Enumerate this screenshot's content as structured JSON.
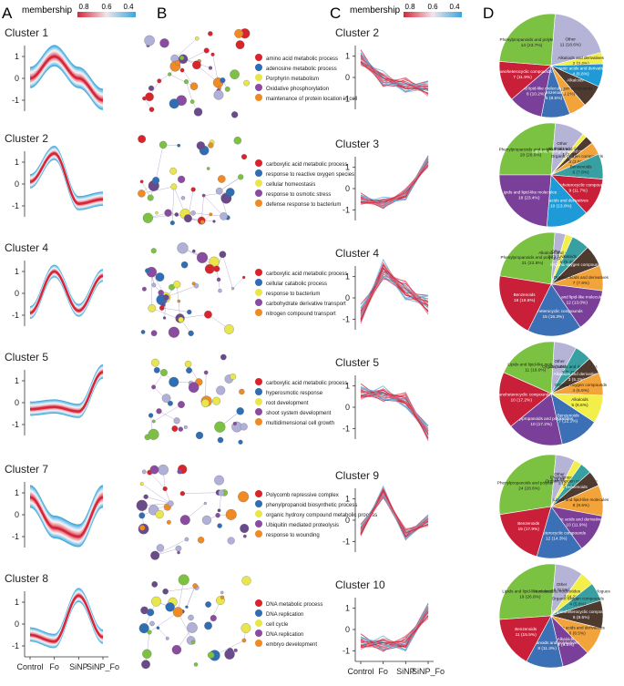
{
  "panel_letters": [
    "A",
    "B",
    "C",
    "D"
  ],
  "membership": {
    "label": "membership",
    "ticks": [
      "0.8",
      "0.6",
      "0.4"
    ]
  },
  "x_categories": [
    "Control",
    "Fo",
    "SiNP",
    "SiNP_Fo"
  ],
  "y_ticks": [
    "1",
    "0",
    "-1"
  ],
  "colors": {
    "red": "#d6263a",
    "blue": "#3aa6dc",
    "light": "#e8f1f8",
    "legend": [
      "#d9242b",
      "#2f6db5",
      "#e8e64a",
      "#8a4ba0",
      "#f08a24"
    ],
    "pie": {
      "Phenylpropanoids": "#7cc242",
      "Organoheterocyclic": "#c91f38",
      "Lipids": "#7a3f98",
      "Benzenoids": "#3b6fb6",
      "Organic acids": "#1e9bd7",
      "Organic oxygen": "#f2a43a",
      "Alkaloids": "#f2ee4a",
      "Other": "#b5b3d6",
      "Lignans": "#4e3a2f",
      "Alkaloids2": "#38a0a0",
      "Nucleosides": "#8b6b4a"
    }
  },
  "chart_data": [
    {
      "type": "line",
      "panel": "A",
      "title": "Cluster 1",
      "categories": [
        "Control",
        "Fo",
        "SiNP",
        "SiNP_Fo"
      ],
      "values": [
        0.0,
        1.0,
        0.0,
        -1.0
      ],
      "spread": 0.75,
      "ylim": [
        -1.5,
        1.5
      ]
    },
    {
      "type": "line",
      "panel": "A",
      "title": "Cluster 2",
      "categories": [
        "Control",
        "Fo",
        "SiNP",
        "SiNP_Fo"
      ],
      "values": [
        0.1,
        1.4,
        -0.9,
        -0.7
      ],
      "spread": 0.5,
      "ylim": [
        -1.5,
        1.5
      ]
    },
    {
      "type": "line",
      "panel": "A",
      "title": "Cluster 4",
      "categories": [
        "Control",
        "Fo",
        "SiNP",
        "SiNP_Fo"
      ],
      "values": [
        -0.9,
        1.0,
        -0.8,
        0.8
      ],
      "spread": 0.45,
      "ylim": [
        -1.5,
        1.5
      ]
    },
    {
      "type": "line",
      "panel": "A",
      "title": "Cluster 5",
      "categories": [
        "Control",
        "Fo",
        "SiNP",
        "SiNP_Fo"
      ],
      "values": [
        -0.3,
        -0.2,
        -0.4,
        1.4
      ],
      "spread": 0.5,
      "ylim": [
        -1.5,
        1.5
      ]
    },
    {
      "type": "line",
      "panel": "A",
      "title": "Cluster 7",
      "categories": [
        "Control",
        "Fo",
        "SiNP",
        "SiNP_Fo"
      ],
      "values": [
        0.8,
        -0.6,
        -1.0,
        0.8
      ],
      "spread": 0.8,
      "ylim": [
        -1.5,
        1.5
      ]
    },
    {
      "type": "line",
      "panel": "A",
      "title": "Cluster 8",
      "categories": [
        "Control",
        "Fo",
        "SiNP",
        "SiNP_Fo"
      ],
      "values": [
        -0.5,
        -0.8,
        1.3,
        -0.6
      ],
      "spread": 0.5,
      "ylim": [
        -1.5,
        1.5
      ]
    },
    {
      "type": "line",
      "panel": "C",
      "title": "Cluster 2",
      "categories": [
        "Control",
        "Fo",
        "SiNP",
        "SiNP_Fo"
      ],
      "values": [
        0.9,
        -0.1,
        -0.4,
        -0.5
      ],
      "spread": 0.4,
      "ylim": [
        -1.5,
        1.5
      ]
    },
    {
      "type": "line",
      "panel": "C",
      "title": "Cluster 3",
      "categories": [
        "Control",
        "Fo",
        "SiNP",
        "SiNP_Fo"
      ],
      "values": [
        -0.5,
        -0.7,
        -0.3,
        1.3
      ],
      "spread": 0.3,
      "ylim": [
        -1.5,
        1.5
      ]
    },
    {
      "type": "line",
      "panel": "C",
      "title": "Cluster 4",
      "categories": [
        "Control",
        "Fo",
        "SiNP",
        "SiNP_Fo"
      ],
      "values": [
        -0.8,
        1.3,
        0.3,
        -0.3
      ],
      "spread": 0.5,
      "ylim": [
        -1.5,
        1.5
      ]
    },
    {
      "type": "line",
      "panel": "C",
      "title": "Cluster 5",
      "categories": [
        "Control",
        "Fo",
        "SiNP",
        "SiNP_Fo"
      ],
      "values": [
        0.7,
        0.6,
        0.3,
        -1.2
      ],
      "spread": 0.4,
      "ylim": [
        -1.5,
        1.5
      ]
    },
    {
      "type": "line",
      "panel": "C",
      "title": "Cluster 9",
      "categories": [
        "Control",
        "Fo",
        "SiNP",
        "SiNP_Fo"
      ],
      "values": [
        -0.5,
        1.3,
        -0.7,
        0.0
      ],
      "spread": 0.3,
      "ylim": [
        -1.5,
        1.5
      ]
    },
    {
      "type": "line",
      "panel": "C",
      "title": "Cluster 10",
      "categories": [
        "Control",
        "Fo",
        "SiNP",
        "SiNP_Fo"
      ],
      "values": [
        -0.6,
        -0.7,
        -0.7,
        0.9
      ],
      "spread": 0.4,
      "ylim": [
        -1.5,
        1.5
      ]
    },
    {
      "type": "pie",
      "panel": "D",
      "slices": [
        {
          "label": "Phenylpropanoids and polyketides",
          "value": 14,
          "text": "14 (23.7%)",
          "color": "Phenylpropanoids"
        },
        {
          "label": "Other",
          "value": 11,
          "text": "11 (18.6%)",
          "color": "Other"
        },
        {
          "label": "Alkaloids and derivatives",
          "value": 2,
          "text": "2 (3.4%)",
          "color": "Alkaloids"
        },
        {
          "label": "Organic acids and derivatives",
          "value": 4,
          "text": "4 (6.8%)",
          "color": "Organic acids"
        },
        {
          "label": "Alkaloids",
          "value": 4,
          "text": "",
          "color": "Lignans"
        },
        {
          "label": "Organic oxygen compounds",
          "value": 3,
          "text": "3 (5.1%)",
          "color": "Organic oxygen"
        },
        {
          "label": "Benzenoids",
          "value": 5,
          "text": "5 (8.5%)",
          "color": "Benzenoids"
        },
        {
          "label": "Lipids and lipid-like molecules",
          "value": 6,
          "text": "6 (10.2%)",
          "color": "Lipids"
        },
        {
          "label": "Organoheterocyclic compounds",
          "value": 7,
          "text": "7 (11.9%)",
          "color": "Organoheterocyclic"
        }
      ]
    },
    {
      "type": "pie",
      "panel": "D",
      "slices": [
        {
          "label": "Phenylpropanoids and polyketides",
          "value": 20,
          "text": "20 (26.0%)",
          "color": "Phenylpropanoids"
        },
        {
          "label": "Other",
          "value": 7,
          "text": "7 (9.1%)",
          "color": "Other"
        },
        {
          "label": "Alkaloids and derivatives",
          "value": 1,
          "text": "1 (1.3%)",
          "color": "Alkaloids"
        },
        {
          "label": "Lignans, neolignans and related compounds",
          "value": 2,
          "text": "2 (2.6%)",
          "color": "Lignans"
        },
        {
          "label": "Organic oxygen compounds",
          "value": 3,
          "text": "3 (3.9%)",
          "color": "Organic oxygen"
        },
        {
          "label": "Benzenoids",
          "value": 6,
          "text": "6 (7.8%)",
          "color": "Alkaloids2"
        },
        {
          "label": "Organoheterocyclic compounds",
          "value": 9,
          "text": "9 (11.7%)",
          "color": "Organoheterocyclic"
        },
        {
          "label": "Organic acids and derivatives",
          "value": 10,
          "text": "10 (13.0%)",
          "color": "Organic acids"
        },
        {
          "label": "Lipids and lipid-like molecules",
          "value": 18,
          "text": "18 (23.4%)",
          "color": "Lipids"
        }
      ]
    },
    {
      "type": "pie",
      "panel": "D",
      "slices": [
        {
          "label": "Phenylpropanoids and polyketides",
          "value": 21,
          "text": "21 (22.8%)",
          "color": "Phenylpropanoids"
        },
        {
          "label": "Other",
          "value": 3,
          "text": "3 (3.3%)",
          "color": "Other"
        },
        {
          "label": "Alkaloids and derivatives",
          "value": 2,
          "text": "2 (2.2%)",
          "color": "Alkaloids"
        },
        {
          "label": "Alkaloids",
          "value": 5,
          "text": "5 (5.4%)",
          "color": "Alkaloids2"
        },
        {
          "label": "Organic oxygen compounds",
          "value": 6,
          "text": "",
          "color": "Lignans"
        },
        {
          "label": "Organic acids and derivatives",
          "value": 7,
          "text": "7 (7.6%)",
          "color": "Organic oxygen"
        },
        {
          "label": "Lipids and lipid-like molecules",
          "value": 12,
          "text": "12 (13.0%)",
          "color": "Lipids"
        },
        {
          "label": "Organoheterocyclic compounds",
          "value": 15,
          "text": "15 (16.3%)",
          "color": "Benzenoids"
        },
        {
          "label": "Benzenoids",
          "value": 18,
          "text": "18 (19.6%)",
          "color": "Organoheterocyclic"
        }
      ]
    },
    {
      "type": "pie",
      "panel": "D",
      "slices": [
        {
          "label": "Lipids and lipid-like molecules",
          "value": 11,
          "text": "11 (19.0%)",
          "color": "Phenylpropanoids"
        },
        {
          "label": "Other",
          "value": 4,
          "text": "4 (6.9%)",
          "color": "Other"
        },
        {
          "label": "Organic acids and derivatives",
          "value": 3,
          "text": "3 (5.2%)",
          "color": "Alkaloids2"
        },
        {
          "label": "Alkaloids and derivatives",
          "value": 3,
          "text": "3 (5.2%)",
          "color": "Lignans"
        },
        {
          "label": "Organic oxygen compounds",
          "value": 4,
          "text": "4 (6.9%)",
          "color": "Organic oxygen"
        },
        {
          "label": "Alkaloids",
          "value": 5,
          "text": "5 (8.6%)",
          "color": "Alkaloids"
        },
        {
          "label": "Benzenoids",
          "value": 7,
          "text": "7 (12.1%)",
          "color": "Benzenoids"
        },
        {
          "label": "Phenylpropanoids and polyketides",
          "value": 10,
          "text": "10 (17.2%)",
          "color": "Lipids"
        },
        {
          "label": "Organoheterocyclic compounds",
          "value": 10,
          "text": "10 (17.2%)",
          "color": "Organoheterocyclic"
        }
      ]
    },
    {
      "type": "pie",
      "panel": "D",
      "slices": [
        {
          "label": "Phenylpropanoids and polyketides",
          "value": 24,
          "text": "24 (28.6%)",
          "color": "Phenylpropanoids"
        },
        {
          "label": "Other",
          "value": 5,
          "text": "5 (6.0%)",
          "color": "Other"
        },
        {
          "label": "Phenylpropanoids",
          "value": 2,
          "text": "2 (2.4%)",
          "color": "Alkaloids"
        },
        {
          "label": "Organic oxygen compounds",
          "value": 3,
          "text": "3 (3.6%)",
          "color": "Alkaloids2"
        },
        {
          "label": "Benzenoids",
          "value": 4,
          "text": "",
          "color": "Lignans"
        },
        {
          "label": "Lipids and lipid-like molecules",
          "value": 8,
          "text": "8 (9.5%)",
          "color": "Organic oxygen"
        },
        {
          "label": "Organic acids and derivatives",
          "value": 10,
          "text": "10 (11.9%)",
          "color": "Lipids"
        },
        {
          "label": "Organoheterocyclic compounds",
          "value": 12,
          "text": "12 (14.3%)",
          "color": "Benzenoids"
        },
        {
          "label": "Benzenoids",
          "value": 15,
          "text": "15 (17.9%)",
          "color": "Organoheterocyclic"
        }
      ]
    },
    {
      "type": "pie",
      "panel": "D",
      "slices": [
        {
          "label": "Lipids and lipid-like molecules",
          "value": 19,
          "text": "19 (26.8%)",
          "color": "Phenylpropanoids"
        },
        {
          "label": "Other",
          "value": 6,
          "text": "6 (8.5%)",
          "color": "Other"
        },
        {
          "label": "Nucleosides, nucleotides, and analogues",
          "value": 3,
          "text": "3 (4.2%)",
          "color": "Alkaloids"
        },
        {
          "label": "Organic oxygen compounds",
          "value": 4,
          "text": "4 (5.6%)",
          "color": "Alkaloids2"
        },
        {
          "label": "Organoheterocyclic compounds",
          "value": 6,
          "text": "6 (8.5%)",
          "color": "Lignans"
        },
        {
          "label": "Organic acids and derivatives",
          "value": 6,
          "text": "6 (8.5%)",
          "color": "Organic oxygen"
        },
        {
          "label": "Alkaloids",
          "value": 6,
          "text": "6 (8.5%)",
          "color": "Lipids"
        },
        {
          "label": "Phenylpropanoids and polyketides",
          "value": 8,
          "text": "8 (11.3%)",
          "color": "Benzenoids"
        },
        {
          "label": "Benzenoids",
          "value": 11,
          "text": "11 (15.5%)",
          "color": "Organoheterocyclic"
        }
      ]
    }
  ],
  "network_legends": [
    [
      "amino acid metabolic process",
      "adenosine metabolic process",
      "Porphyrin metabolism",
      "Oxidative phosphorylation",
      "maintenance of protein location in cell"
    ],
    [
      "carboxylic acid metabolic process",
      "response to reactive oxygen species",
      "cellular homeostasis",
      "response to osmotic stress",
      "defense response to bacterium"
    ],
    [
      "carboxylic acid metabolic process",
      "cellular catabolic process",
      "response to bacterium",
      "carbohydrate derivative transport",
      "nitrogen compound transport"
    ],
    [
      "carboxylic acid metabolic process",
      "hyperosmotic response",
      "root development",
      "shoot system development",
      "multidimensional cell growth"
    ],
    [
      "Polycomb repressive complex",
      "phenylpropanoid biosynthetic process",
      "organic hydroxy compound metabolic process",
      "Ubiquitin mediated proteolysis",
      "response to wounding"
    ],
    [
      "DNA metabolic process",
      "DNA replication",
      "cell cycle",
      "DNA replication",
      "embryo development"
    ]
  ]
}
